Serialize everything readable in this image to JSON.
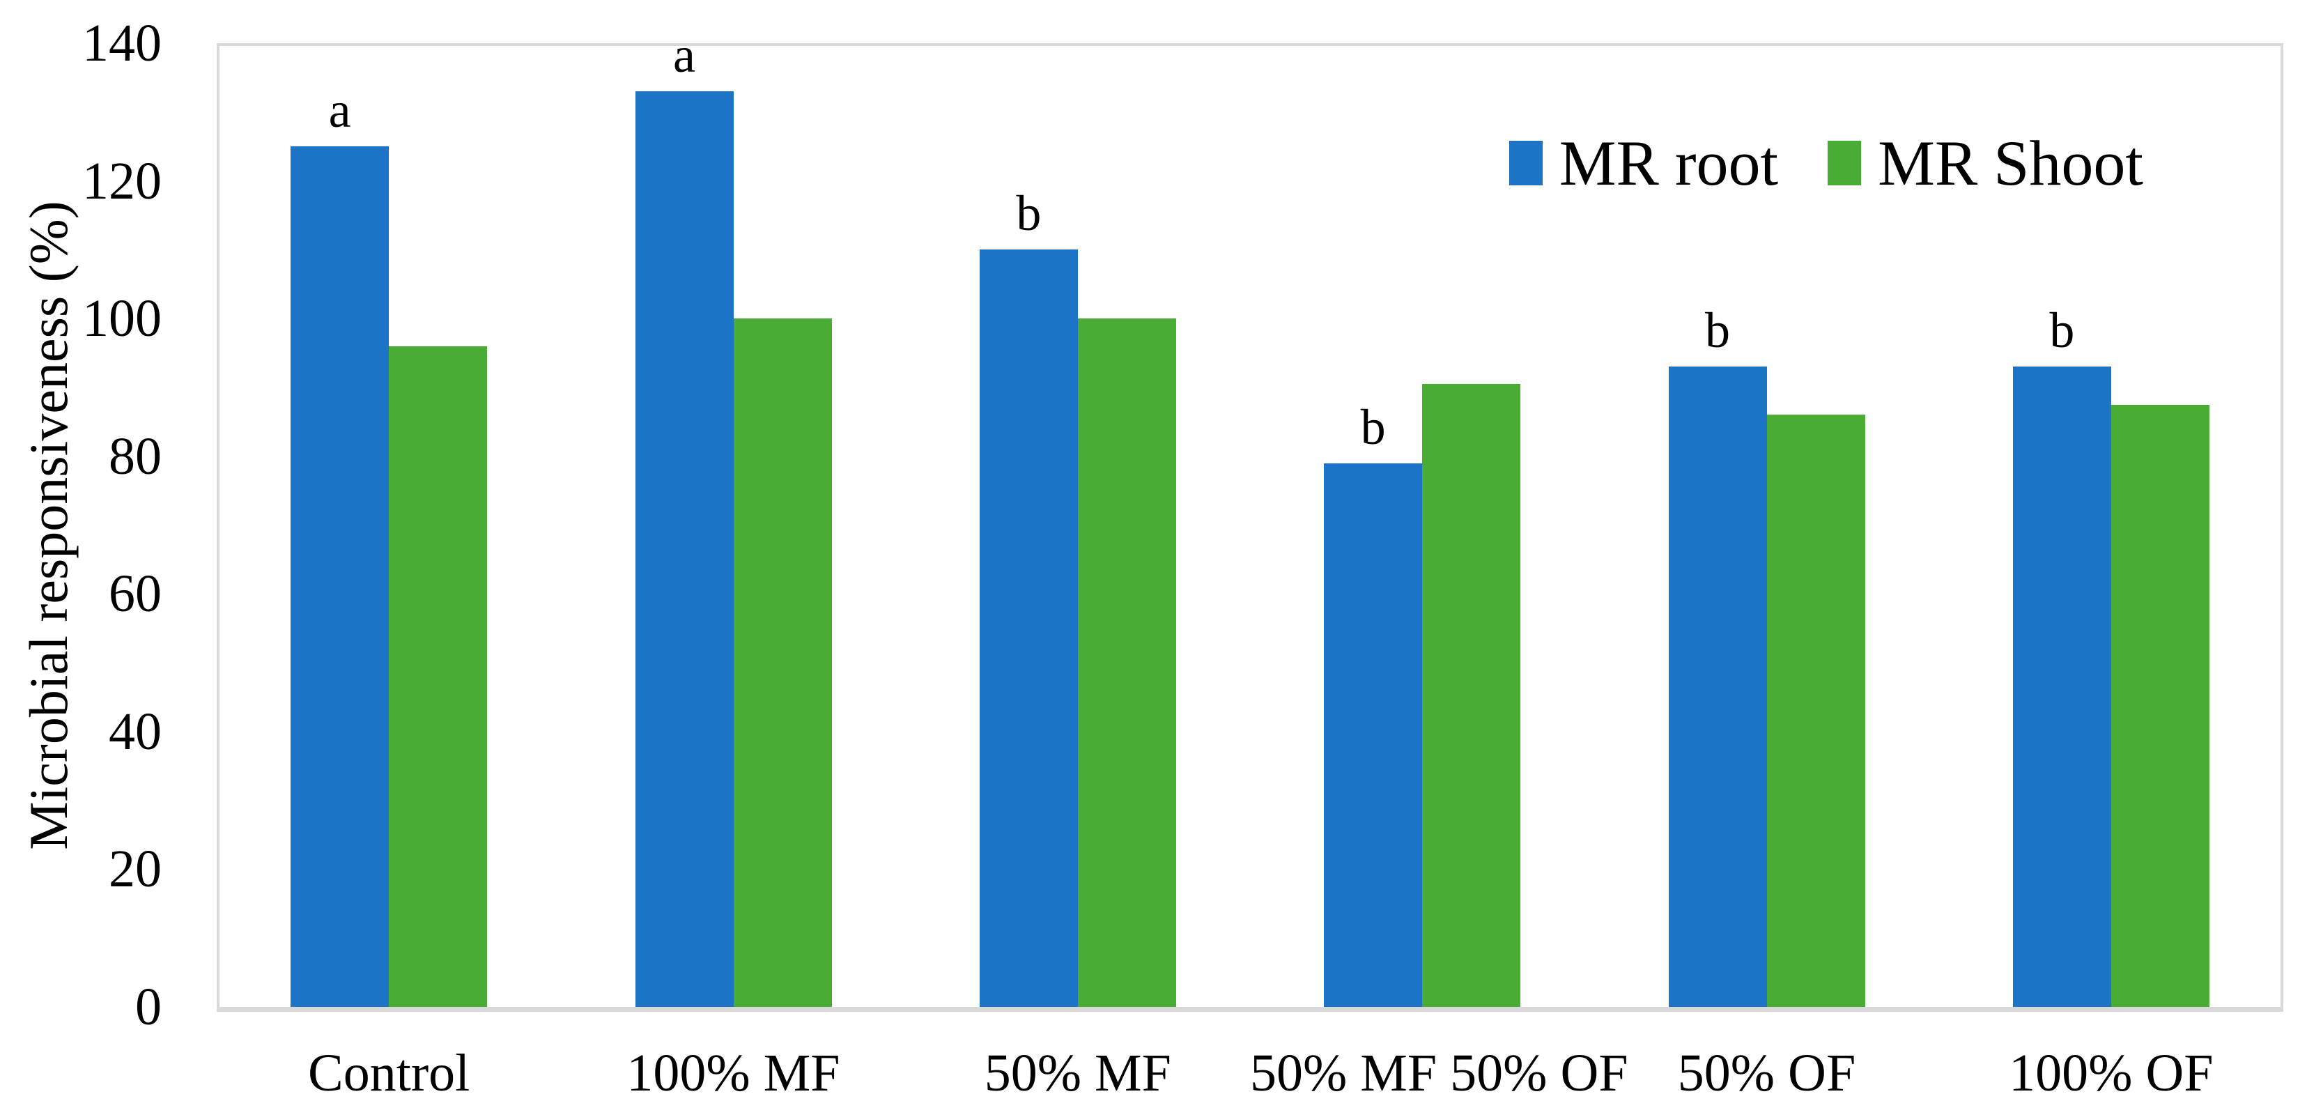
{
  "chart_data": {
    "type": "bar",
    "title": "",
    "xlabel": "",
    "ylabel": "Microbial responsiveness (%)",
    "ylim": [
      0,
      140
    ],
    "yticks": [
      0,
      20,
      40,
      60,
      80,
      100,
      120,
      140
    ],
    "grid": false,
    "legend_position": "top-right-inside",
    "categories": [
      "Control",
      "100% MF",
      "50% MF",
      "50% MF 50% OF",
      "50% OF",
      "100% OF"
    ],
    "series": [
      {
        "name": "MR root",
        "color": "#1B74C6",
        "values": [
          125,
          133,
          110,
          79,
          93,
          93
        ]
      },
      {
        "name": "MR Shoot",
        "color": "#48AC35",
        "values": [
          96,
          100,
          100,
          90.5,
          86,
          87.5
        ]
      }
    ],
    "annotations": {
      "attached_to_series": "MR root",
      "letters": [
        "a",
        "a",
        "b",
        "b",
        "b",
        "b"
      ]
    },
    "colors": {
      "axis_border": "#D9D9D9",
      "text": "#000000",
      "background": "#FFFFFF"
    }
  }
}
